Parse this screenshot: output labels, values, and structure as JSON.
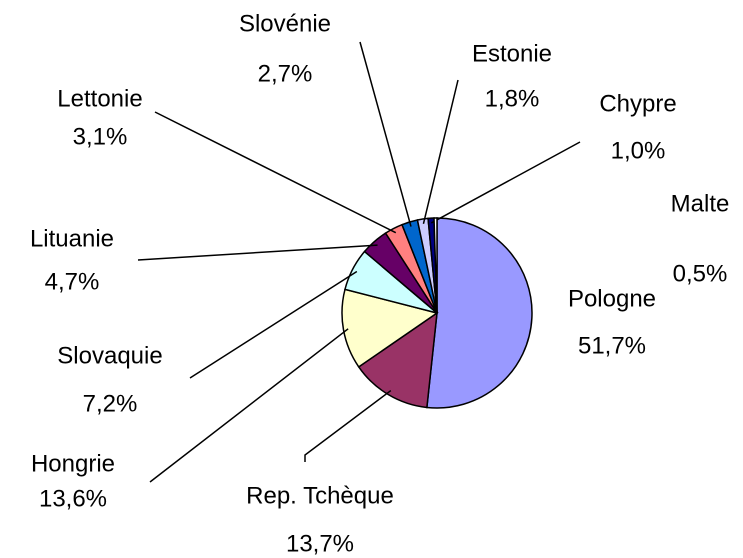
{
  "chart_data": {
    "type": "pie",
    "categories": [
      "Pologne",
      "Rep. Tchèque",
      "Hongrie",
      "Slovaquie",
      "Lituanie",
      "Lettonie",
      "Slovénie",
      "Estonie",
      "Chypre",
      "Malte"
    ],
    "values": [
      51.7,
      13.7,
      13.6,
      7.2,
      4.7,
      3.1,
      2.7,
      1.8,
      1.0,
      0.5
    ],
    "value_labels": [
      "51,7%",
      "13,7%",
      "13,6%",
      "7,2%",
      "4,7%",
      "3,1%",
      "2,7%",
      "1,8%",
      "1,0%",
      "0,5%"
    ],
    "colors": [
      "#9999ff",
      "#993366",
      "#ffffcc",
      "#ccffff",
      "#660066",
      "#ff8080",
      "#0066cc",
      "#ccccff",
      "#000080",
      "#ffffff"
    ]
  }
}
